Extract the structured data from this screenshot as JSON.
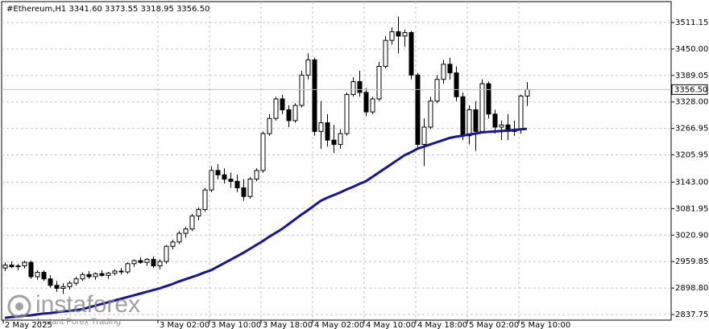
{
  "chart_data": {
    "type": "candlestick",
    "title": "#Ethereum,H1  3341.60 3373.55 3318.95 3356.50",
    "bull_color": "#ffffff",
    "bear_color": "#000000",
    "line_color": "#000000",
    "grid": true,
    "ylim": [
      2824.8,
      3559.4
    ],
    "yticks": [
      3511.15,
      {
        "value": 3450,
        "label": "3450.00"
      },
      3389.05,
      {
        "value": 3328,
        "label": "3328.00"
      },
      3266.95,
      3205.95,
      {
        "value": 3143,
        "label": "3143.00"
      },
      3081.95,
      {
        "value": 3020.9,
        "label": "3020.90"
      },
      2959.85,
      {
        "value": 2898.8,
        "label": "2898.80"
      },
      2837.75
    ],
    "last_price": {
      "value": 3356.5,
      "label": "3356.50"
    },
    "categories": [
      "2 May 2025",
      null,
      null,
      null,
      null,
      null,
      null,
      null,
      null,
      null,
      null,
      null,
      null,
      null,
      null,
      null,
      null,
      null,
      null,
      null,
      null,
      null,
      null,
      null,
      "3 May 02:00",
      null,
      null,
      null,
      null,
      null,
      null,
      null,
      "3 May 10:00",
      null,
      null,
      null,
      null,
      null,
      null,
      null,
      "3 May 18:00",
      null,
      null,
      null,
      null,
      null,
      null,
      null,
      "4 May 02:00",
      null,
      null,
      null,
      null,
      null,
      null,
      null,
      "4 May 10:00",
      null,
      null,
      null,
      null,
      null,
      null,
      null,
      "4 May 18:00",
      null,
      null,
      null,
      null,
      null,
      null,
      null,
      "5 May 02:00",
      null,
      null,
      null,
      null,
      null,
      null,
      null,
      "5 May 10:00",
      null
    ],
    "ohlc": {
      "open": [
        2945,
        2952,
        2948,
        2950,
        2958,
        2925,
        2935,
        2920,
        2905,
        2898,
        2902,
        2910,
        2920,
        2930,
        2925,
        2932,
        2928,
        2933,
        2938,
        2936,
        2955,
        2962,
        2958,
        2965,
        2950,
        2960,
        2995,
        3005,
        3025,
        3035,
        3065,
        3080,
        3125,
        3170,
        3160,
        3150,
        3145,
        3130,
        3110,
        3150,
        3170,
        3255,
        3290,
        3335,
        3310,
        3285,
        3320,
        3390,
        3425,
        3260,
        3280,
        3240,
        3230,
        3255,
        3345,
        3375,
        3350,
        3305,
        3335,
        3410,
        3470,
        3490,
        3480,
        3488,
        3390,
        3230,
        3270,
        3330,
        3380,
        3415,
        3395,
        3340,
        3250,
        3310,
        3260,
        3370,
        3300,
        3270,
        3275,
        3260,
        3265,
        3341.6
      ],
      "high": [
        2958,
        2960,
        2955,
        2962,
        2962,
        2940,
        2940,
        2928,
        2915,
        2910,
        2915,
        2925,
        2935,
        2938,
        2935,
        2940,
        2936,
        2942,
        2945,
        2958,
        2965,
        2970,
        2968,
        2972,
        2965,
        2998,
        3010,
        3030,
        3040,
        3070,
        3085,
        3130,
        3180,
        3185,
        3175,
        3165,
        3160,
        3150,
        3155,
        3175,
        3260,
        3300,
        3340,
        3345,
        3320,
        3325,
        3400,
        3440,
        3430,
        3330,
        3300,
        3275,
        3265,
        3350,
        3385,
        3400,
        3360,
        3340,
        3420,
        3480,
        3500,
        3525,
        3495,
        3492,
        3395,
        3290,
        3340,
        3390,
        3425,
        3430,
        3410,
        3350,
        3320,
        3330,
        3380,
        3375,
        3310,
        3285,
        3300,
        3285,
        3345,
        3373.55
      ],
      "low": [
        2938,
        2945,
        2940,
        2944,
        2920,
        2918,
        2915,
        2900,
        2890,
        2885,
        2895,
        2905,
        2915,
        2920,
        2918,
        2925,
        2920,
        2928,
        2930,
        2932,
        2948,
        2955,
        2950,
        2945,
        2942,
        2955,
        2988,
        3000,
        3015,
        3030,
        3055,
        3075,
        3120,
        3150,
        3140,
        3130,
        3120,
        3100,
        3105,
        3145,
        3165,
        3250,
        3285,
        3300,
        3270,
        3280,
        3315,
        3380,
        3250,
        3220,
        3225,
        3210,
        3220,
        3250,
        3340,
        3340,
        3295,
        3300,
        3330,
        3405,
        3460,
        3440,
        3455,
        3380,
        3220,
        3180,
        3265,
        3325,
        3370,
        3380,
        3330,
        3240,
        3230,
        3215,
        3255,
        3290,
        3255,
        3240,
        3240,
        3250,
        3255,
        3318.95
      ],
      "close": [
        2952,
        2948,
        2950,
        2958,
        2925,
        2935,
        2920,
        2905,
        2898,
        2902,
        2910,
        2920,
        2930,
        2925,
        2932,
        2928,
        2933,
        2938,
        2936,
        2955,
        2962,
        2958,
        2965,
        2950,
        2960,
        2995,
        3005,
        3025,
        3035,
        3065,
        3080,
        3125,
        3170,
        3160,
        3150,
        3145,
        3130,
        3110,
        3150,
        3170,
        3255,
        3290,
        3335,
        3310,
        3285,
        3320,
        3390,
        3425,
        3260,
        3280,
        3240,
        3230,
        3255,
        3345,
        3375,
        3350,
        3305,
        3335,
        3410,
        3470,
        3490,
        3480,
        3488,
        3390,
        3230,
        3270,
        3330,
        3380,
        3415,
        3395,
        3340,
        3250,
        3310,
        3260,
        3370,
        3300,
        3270,
        3275,
        3260,
        3265,
        3341.6,
        3356.5
      ]
    },
    "moving_average": {
      "color": "#14149e",
      "values": [
        2830,
        2832,
        2833,
        2835,
        2836,
        2838,
        2840,
        2841,
        2843,
        2845,
        2846,
        2848,
        2850,
        2854,
        2858,
        2862,
        2866,
        2870,
        2874,
        2878,
        2882,
        2886,
        2890,
        2894,
        2898,
        2903,
        2908,
        2914,
        2919,
        2924,
        2929,
        2935,
        2940,
        2948,
        2956,
        2964,
        2972,
        2980,
        2989,
        2998,
        3007,
        3017,
        3026,
        3035,
        3046,
        3057,
        3068,
        3078,
        3089,
        3100,
        3107,
        3113,
        3119,
        3126,
        3132,
        3139,
        3145,
        3155,
        3165,
        3175,
        3185,
        3195,
        3205,
        3212,
        3220,
        3225,
        3230,
        3235,
        3240,
        3245,
        3248,
        3250,
        3253,
        3255,
        3258,
        3259,
        3260,
        3261,
        3262,
        3263,
        3265,
        3266
      ]
    },
    "watermark": {
      "brand": "instaforex",
      "tagline": "Instant Forex Trading"
    }
  }
}
